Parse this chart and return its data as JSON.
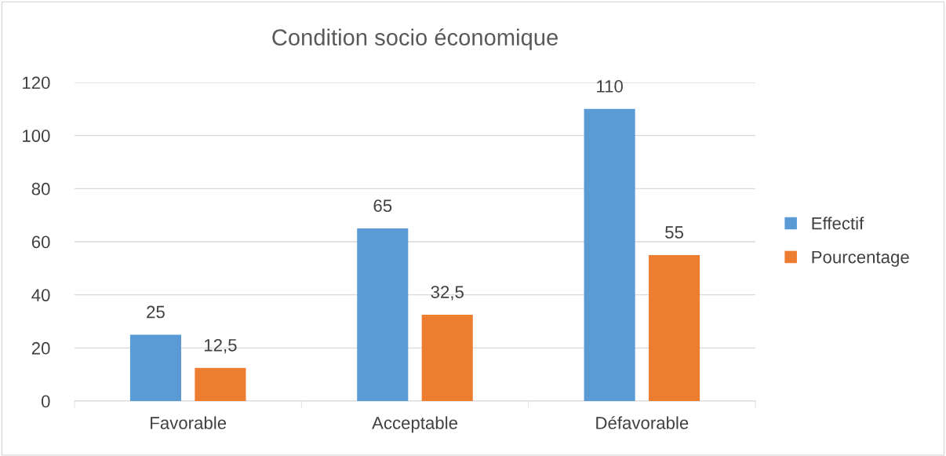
{
  "chart_data": {
    "type": "bar",
    "title": "Condition socio économique",
    "categories": [
      "Favorable",
      "Acceptable",
      "Défavorable"
    ],
    "series": [
      {
        "name": "Effectif",
        "color": "#5b9bd5",
        "values": [
          25,
          65,
          110
        ],
        "value_labels": [
          "25",
          "65",
          "110"
        ]
      },
      {
        "name": "Pourcentage",
        "color": "#ed7d31",
        "values": [
          12.5,
          32.5,
          55
        ],
        "value_labels": [
          "12,5",
          "32,5",
          "55"
        ]
      }
    ],
    "ylim": [
      0,
      120
    ],
    "yticks": [
      0,
      20,
      40,
      60,
      80,
      100,
      120
    ],
    "grid": "y",
    "legend": "right"
  }
}
